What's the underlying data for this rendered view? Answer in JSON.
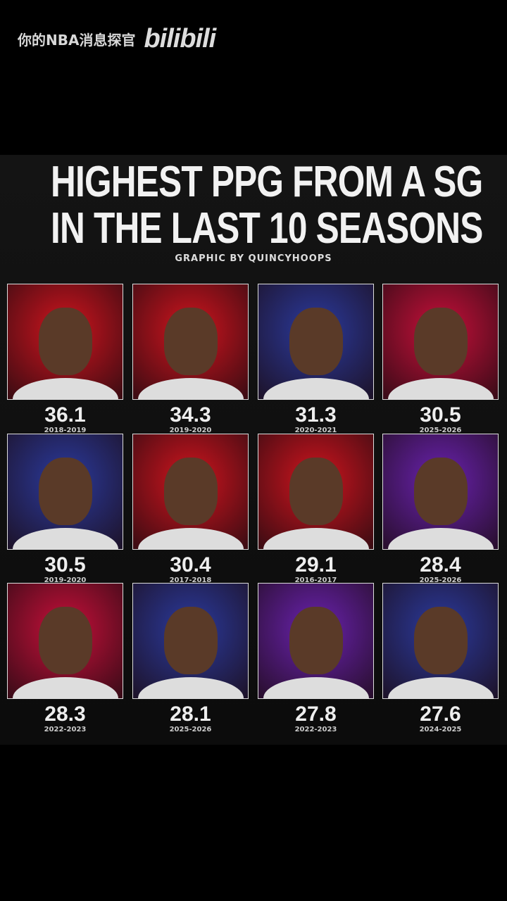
{
  "watermark": {
    "channel": "你的NBA消息探官",
    "logo": "bilibili"
  },
  "graphic": {
    "title_line1": "HIGHEST PPG FROM A SG",
    "title_line2": "IN THE LAST 10 SEASONS",
    "credit": "GRAPHIC BY QUINCYHOOPS",
    "cards": [
      {
        "ppg": "36.1",
        "season": "2018-2019",
        "bg": "red"
      },
      {
        "ppg": "34.3",
        "season": "2019-2020",
        "bg": "red"
      },
      {
        "ppg": "31.3",
        "season": "2020-2021",
        "bg": "blue"
      },
      {
        "ppg": "30.5",
        "season": "2025-2026",
        "bg": "crimson"
      },
      {
        "ppg": "30.5",
        "season": "2019-2020",
        "bg": "blue"
      },
      {
        "ppg": "30.4",
        "season": "2017-2018",
        "bg": "red"
      },
      {
        "ppg": "29.1",
        "season": "2016-2017",
        "bg": "red"
      },
      {
        "ppg": "28.4",
        "season": "2025-2026",
        "bg": "purple"
      },
      {
        "ppg": "28.3",
        "season": "2022-2023",
        "bg": "crimson"
      },
      {
        "ppg": "28.1",
        "season": "2025-2026",
        "bg": "blue"
      },
      {
        "ppg": "27.8",
        "season": "2022-2023",
        "bg": "purple"
      },
      {
        "ppg": "27.6",
        "season": "2024-2025",
        "bg": "blue"
      }
    ]
  },
  "colors": {
    "red": "#d0141e",
    "blue": "#2b3a9e",
    "crimson": "#c8103a",
    "purple": "#6a22b0"
  }
}
